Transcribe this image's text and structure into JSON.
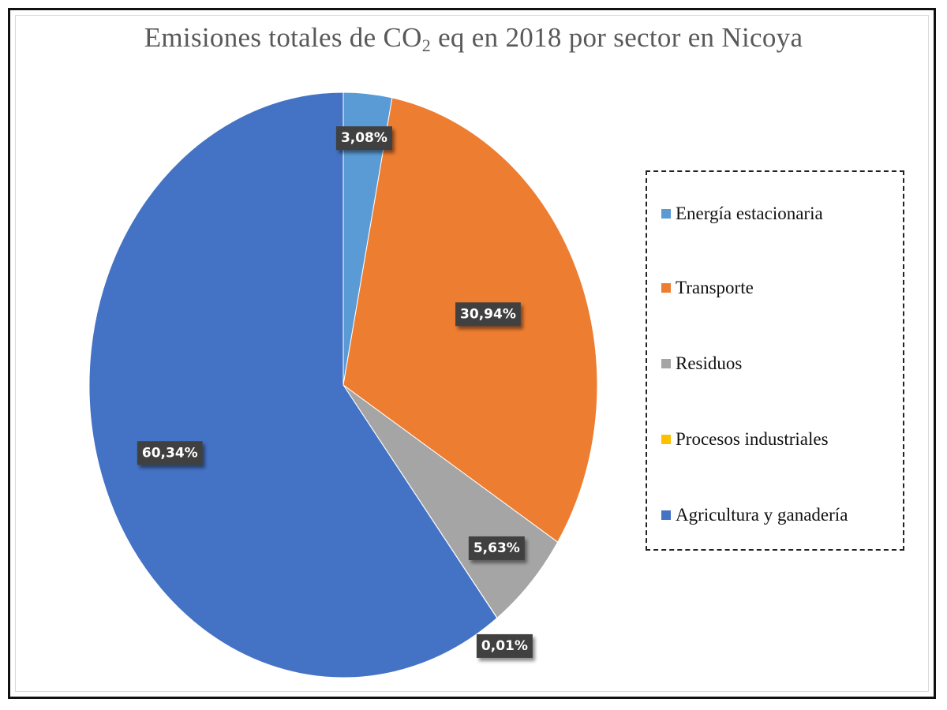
{
  "chart_data": {
    "type": "pie",
    "title_main": "Emisiones totales de CO",
    "title_sub": "2",
    "title_rest": " eq en 2018 por sector en Nicoya",
    "categories": [
      "Energía estacionaria",
      "Transporte",
      "Residuos",
      "Procesos industriales",
      "Agricultura y ganadería"
    ],
    "values": [
      3.08,
      30.94,
      5.63,
      0.01,
      60.34
    ],
    "data_labels": [
      "3,08%",
      "30,94%",
      "5,63%",
      "0,01%",
      "60,34%"
    ],
    "colors": [
      "#5b9bd5",
      "#ed7d31",
      "#a5a5a5",
      "#ffc000",
      "#4472c4"
    ],
    "legend_position": "right"
  }
}
